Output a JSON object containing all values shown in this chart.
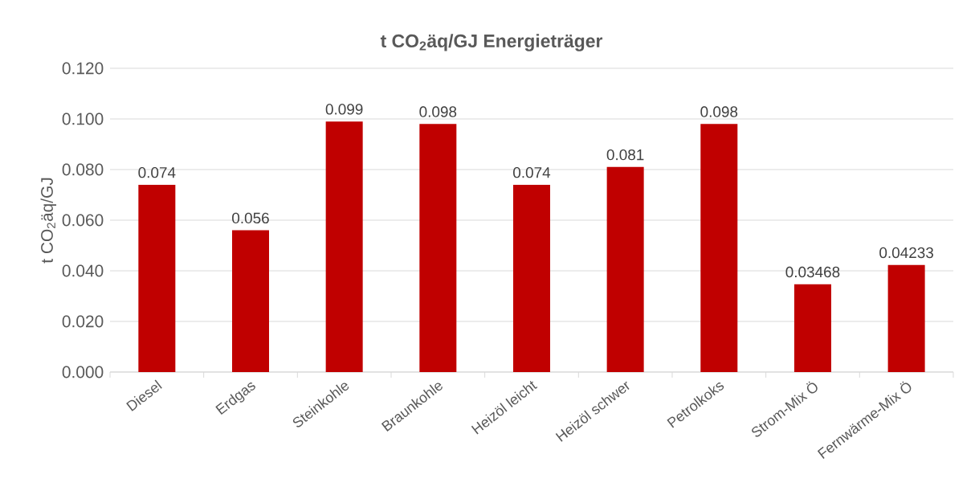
{
  "chart_data": {
    "type": "bar",
    "title": "t CO$_{2}$äq/GJ Energieträger",
    "ylabel": "t CO$_{2}$äq/GJ",
    "categories": [
      "Diesel",
      "Erdgas",
      "Steinkohle",
      "Braunkohle",
      "Heizöl leicht",
      "Heizöl schwer",
      "Petrolkoks",
      "Strom-Mix Ö",
      "Fernwärme-Mix Ö"
    ],
    "values": [
      0.074,
      0.056,
      0.099,
      0.098,
      0.074,
      0.081,
      0.098,
      0.03468,
      0.04233
    ],
    "value_labels": [
      "0.074",
      "0.056",
      "0.099",
      "0.098",
      "0.074",
      "0.081",
      "0.098",
      "0.03468",
      "0.04233"
    ],
    "color": "#c00000",
    "ylim": [
      0,
      0.12
    ],
    "yticks": [
      {
        "value": 0,
        "label": "0.000"
      },
      {
        "value": 0.02,
        "label": "0.020"
      },
      {
        "value": 0.04,
        "label": "0.040"
      },
      {
        "value": 0.06,
        "label": "0.060"
      },
      {
        "value": 0.08,
        "label": "0.080"
      },
      {
        "value": 0.1,
        "label": "0.100"
      },
      {
        "value": 0.12,
        "label": "0.120"
      }
    ],
    "grid": "y"
  }
}
